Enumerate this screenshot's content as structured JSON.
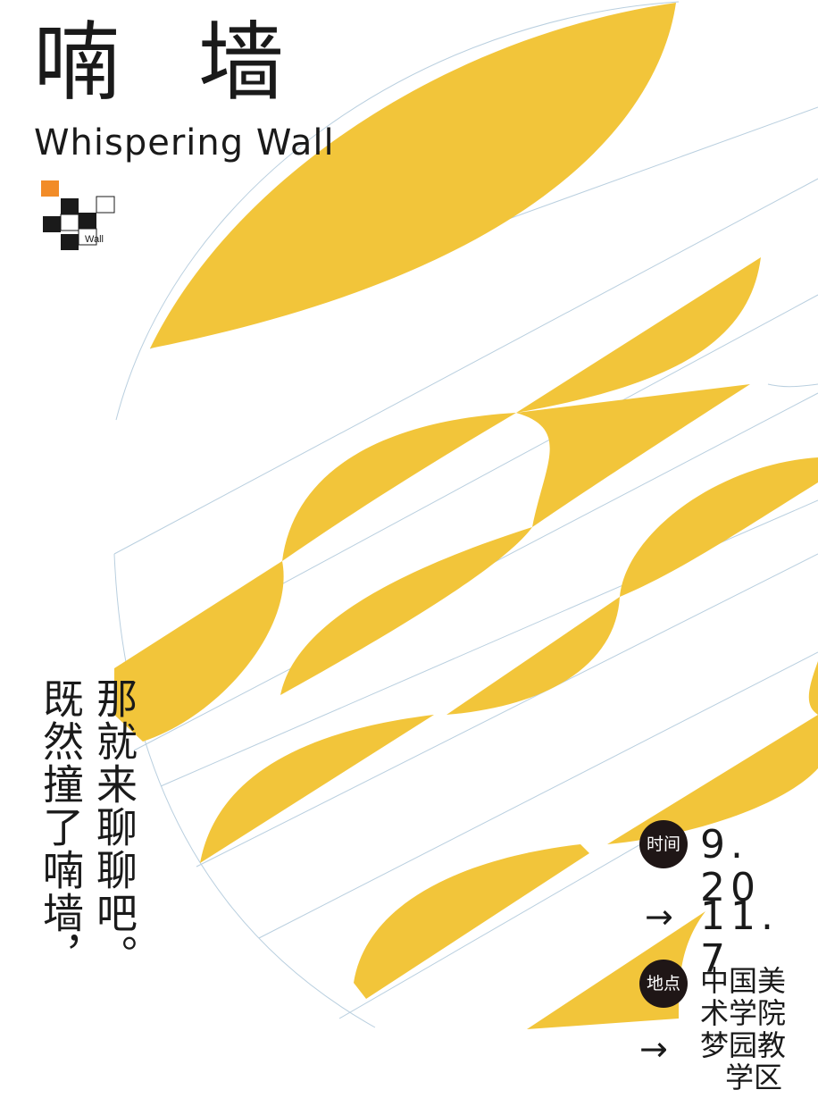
{
  "title": {
    "chars": [
      "喃",
      "墙"
    ],
    "english": "Whispering Wall"
  },
  "logo": {
    "label": "Wall",
    "accent": "#f28c28"
  },
  "slogan": {
    "line1": "那就来聊聊吧。",
    "line2": "既然撞了喃墙，"
  },
  "event": {
    "time_label": "时间",
    "date_start": "9. 20",
    "arrow": "→",
    "date_end": "11. 7",
    "place_label": "地点",
    "place_lines": [
      "中国美",
      "术学院",
      "梦园教",
      "学区"
    ]
  },
  "colors": {
    "yellow": "#f2c53a",
    "line": "#b9cfdf",
    "ink": "#1f1616"
  }
}
